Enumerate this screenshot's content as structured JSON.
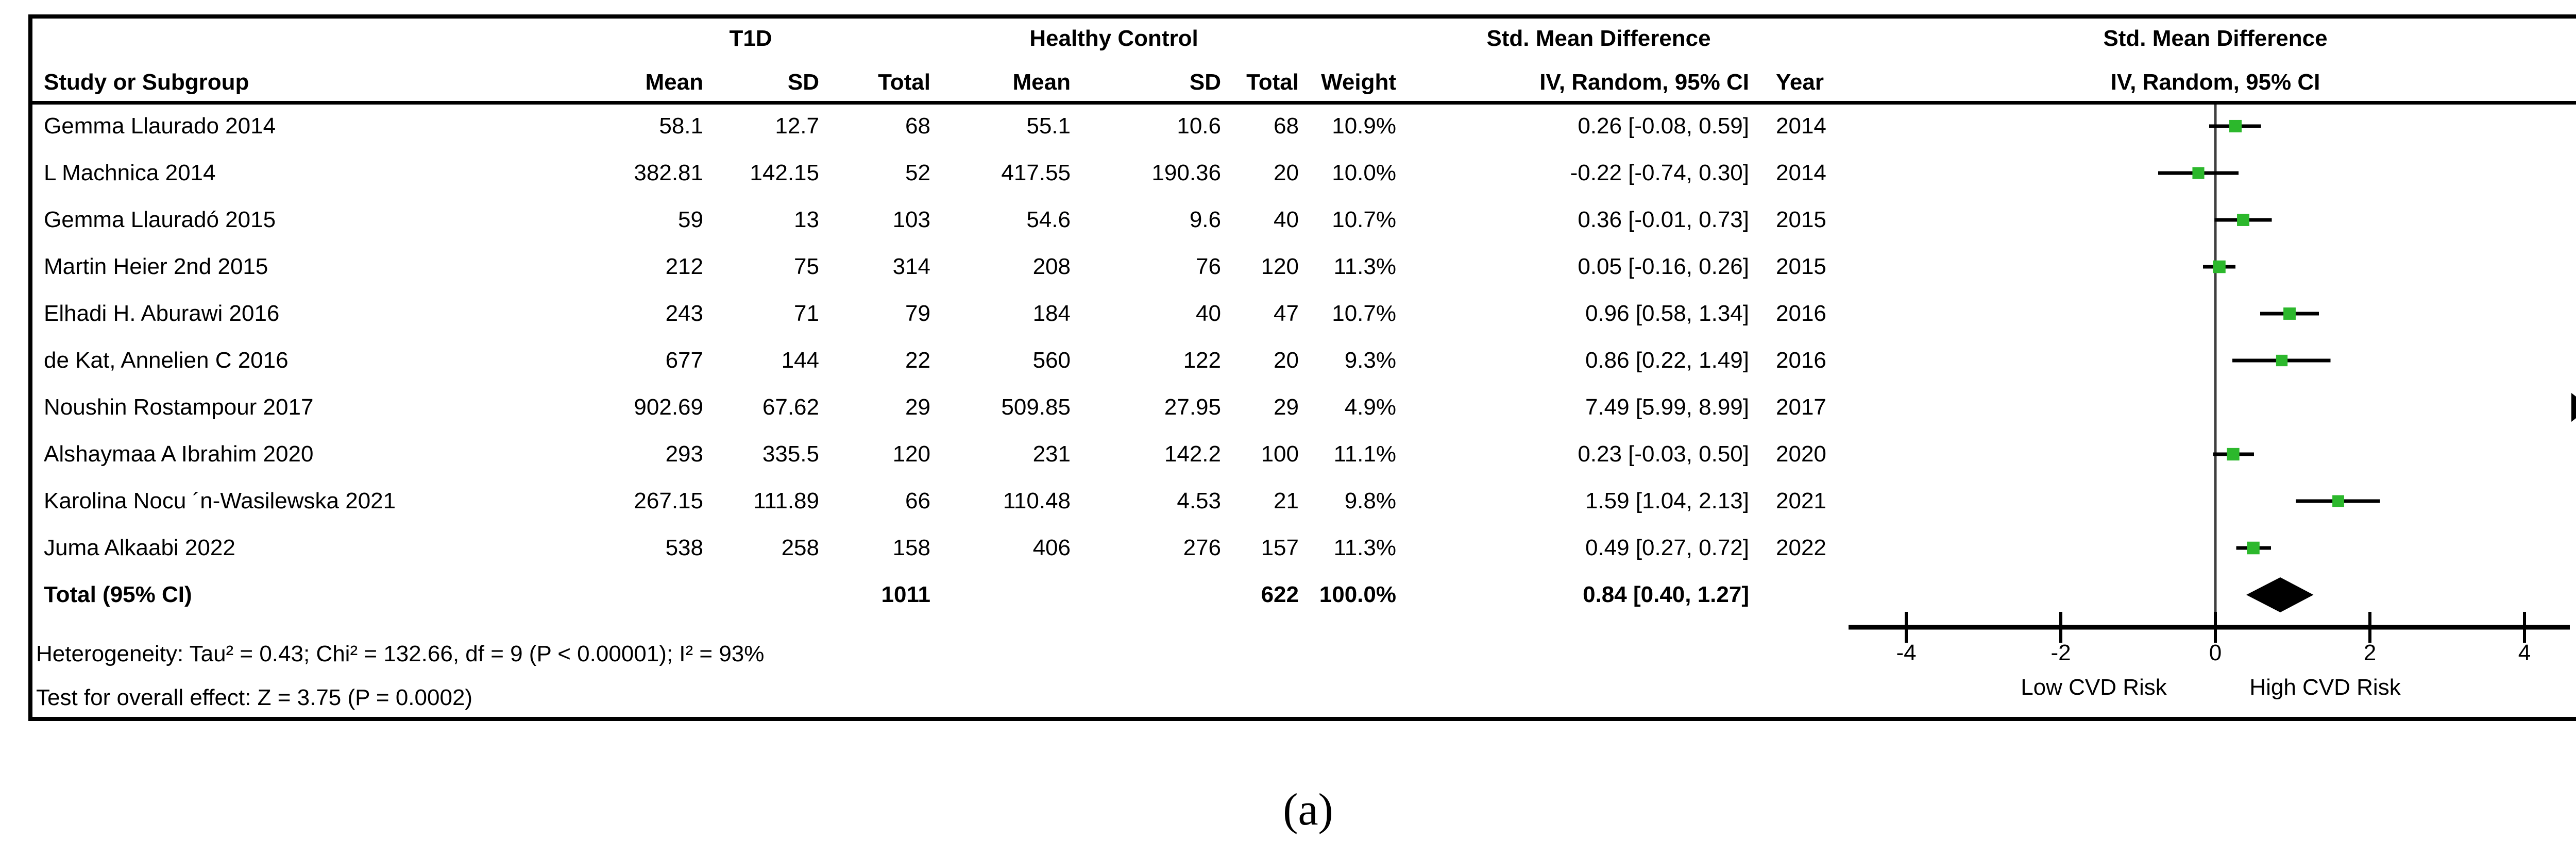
{
  "figure": {
    "caption": "(a)"
  },
  "colors": {
    "square_green": "#2cb82c",
    "ink_black": "#000000",
    "zero_line_gray": "#3f3f3f"
  },
  "header": {
    "study_col": "Study or Subgroup",
    "group1": "T1D",
    "group2": "Healthy Control",
    "mean": "Mean",
    "sd": "SD",
    "total": "Total",
    "weight": "Weight",
    "effect_col_title": "Std. Mean Difference",
    "effect_col_sub": "IV, Random, 95% CI",
    "year": "Year",
    "plot_title": "Std. Mean Difference",
    "plot_sub": "IV, Random, 95% CI"
  },
  "chart_data": {
    "type": "forest",
    "effect_measure": "Std. Mean Difference",
    "model": "IV, Random, 95% CI",
    "x_axis": {
      "min": -4,
      "max": 4,
      "ticks": [
        "-4",
        "-2",
        "0",
        "2",
        "4"
      ],
      "tick_values": [
        -4,
        -2,
        0,
        2,
        4
      ],
      "left_label": "Low CVD Risk",
      "right_label": "High CVD Risk"
    },
    "studies": [
      {
        "name": "Gemma Llaurado 2014",
        "t1d_mean": "58.1",
        "t1d_sd": "12.7",
        "t1d_total": "68",
        "hc_mean": "55.1",
        "hc_sd": "10.6",
        "hc_total": "68",
        "weight": "10.9%",
        "ci_text": "0.26 [-0.08, 0.59]",
        "year": "2014",
        "est": 0.26,
        "lo": -0.08,
        "hi": 0.59,
        "weight_pct": 10.9,
        "out_of_range_right": false
      },
      {
        "name": "L Machnica 2014",
        "t1d_mean": "382.81",
        "t1d_sd": "142.15",
        "t1d_total": "52",
        "hc_mean": "417.55",
        "hc_sd": "190.36",
        "hc_total": "20",
        "weight": "10.0%",
        "ci_text": "-0.22 [-0.74, 0.30]",
        "year": "2014",
        "est": -0.22,
        "lo": -0.74,
        "hi": 0.3,
        "weight_pct": 10.0,
        "out_of_range_right": false
      },
      {
        "name": "Gemma Llauradó 2015",
        "t1d_mean": "59",
        "t1d_sd": "13",
        "t1d_total": "103",
        "hc_mean": "54.6",
        "hc_sd": "9.6",
        "hc_total": "40",
        "weight": "10.7%",
        "ci_text": "0.36 [-0.01, 0.73]",
        "year": "2015",
        "est": 0.36,
        "lo": -0.01,
        "hi": 0.73,
        "weight_pct": 10.7,
        "out_of_range_right": false
      },
      {
        "name": "Martin Heier 2nd 2015",
        "t1d_mean": "212",
        "t1d_sd": "75",
        "t1d_total": "314",
        "hc_mean": "208",
        "hc_sd": "76",
        "hc_total": "120",
        "weight": "11.3%",
        "ci_text": "0.05 [-0.16, 0.26]",
        "year": "2015",
        "est": 0.05,
        "lo": -0.16,
        "hi": 0.26,
        "weight_pct": 11.3,
        "out_of_range_right": false
      },
      {
        "name": "Elhadi H. Aburawi 2016",
        "t1d_mean": "243",
        "t1d_sd": "71",
        "t1d_total": "79",
        "hc_mean": "184",
        "hc_sd": "40",
        "hc_total": "47",
        "weight": "10.7%",
        "ci_text": "0.96 [0.58, 1.34]",
        "year": "2016",
        "est": 0.96,
        "lo": 0.58,
        "hi": 1.34,
        "weight_pct": 10.7,
        "out_of_range_right": false
      },
      {
        "name": "de Kat, Annelien C 2016",
        "t1d_mean": "677",
        "t1d_sd": "144",
        "t1d_total": "22",
        "hc_mean": "560",
        "hc_sd": "122",
        "hc_total": "20",
        "weight": "9.3%",
        "ci_text": "0.86 [0.22, 1.49]",
        "year": "2016",
        "est": 0.86,
        "lo": 0.22,
        "hi": 1.49,
        "weight_pct": 9.3,
        "out_of_range_right": false
      },
      {
        "name": "Noushin Rostampour 2017",
        "t1d_mean": "902.69",
        "t1d_sd": "67.62",
        "t1d_total": "29",
        "hc_mean": "509.85",
        "hc_sd": "27.95",
        "hc_total": "29",
        "weight": "4.9%",
        "ci_text": "7.49 [5.99, 8.99]",
        "year": "2017",
        "est": 7.49,
        "lo": 5.99,
        "hi": 8.99,
        "weight_pct": 4.9,
        "out_of_range_right": true
      },
      {
        "name": "Alshaymaa A Ibrahim 2020",
        "t1d_mean": "293",
        "t1d_sd": "335.5",
        "t1d_total": "120",
        "hc_mean": "231",
        "hc_sd": "142.2",
        "hc_total": "100",
        "weight": "11.1%",
        "ci_text": "0.23 [-0.03, 0.50]",
        "year": "2020",
        "est": 0.23,
        "lo": -0.03,
        "hi": 0.5,
        "weight_pct": 11.1,
        "out_of_range_right": false
      },
      {
        "name": "Karolina Nocu ´n-Wasilewska 2021",
        "t1d_mean": "267.15",
        "t1d_sd": "111.89",
        "t1d_total": "66",
        "hc_mean": "110.48",
        "hc_sd": "4.53",
        "hc_total": "21",
        "weight": "9.8%",
        "ci_text": "1.59 [1.04, 2.13]",
        "year": "2021",
        "est": 1.59,
        "lo": 1.04,
        "hi": 2.13,
        "weight_pct": 9.8,
        "out_of_range_right": false
      },
      {
        "name": "Juma Alkaabi 2022",
        "t1d_mean": "538",
        "t1d_sd": "258",
        "t1d_total": "158",
        "hc_mean": "406",
        "hc_sd": "276",
        "hc_total": "157",
        "weight": "11.3%",
        "ci_text": "0.49 [0.27, 0.72]",
        "year": "2022",
        "est": 0.49,
        "lo": 0.27,
        "hi": 0.72,
        "weight_pct": 11.3,
        "out_of_range_right": false
      }
    ],
    "total": {
      "label": "Total (95% CI)",
      "t1d_total": "1011",
      "hc_total": "622",
      "weight": "100.0%",
      "ci_text": "0.84 [0.40, 1.27]",
      "est": 0.84,
      "lo": 0.4,
      "hi": 1.27
    },
    "footnotes": {
      "heterogeneity": "Heterogeneity: Tau² = 0.43; Chi² = 132.66, df = 9 (P < 0.00001); I² = 93%",
      "overall_effect": "Test for overall effect: Z = 3.75 (P = 0.0002)"
    }
  }
}
